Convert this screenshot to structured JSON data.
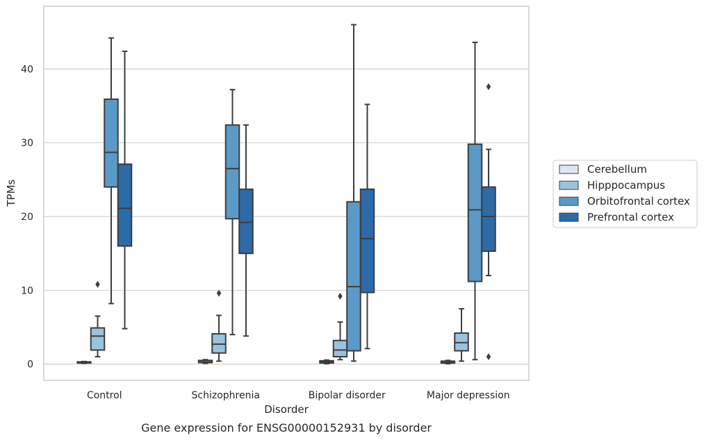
{
  "chart_data": {
    "type": "box",
    "title": "",
    "caption": "Gene expression for ENSG00000152931 by disorder",
    "xlabel": "Disorder",
    "ylabel": "TPMs",
    "ylim": [
      -2.2,
      48.5
    ],
    "yticks": [
      0,
      10,
      20,
      30,
      40
    ],
    "grid": "horizontal",
    "legend_position": "right",
    "categories": [
      "Control",
      "Schizophrenia",
      "Bipolar disorder",
      "Major depression"
    ],
    "series": [
      {
        "name": "Cerebellum",
        "color": "#dbe7f2",
        "boxes": [
          {
            "min": 0.1,
            "q1": 0.15,
            "median": 0.2,
            "q3": 0.3,
            "max": 0.35,
            "outliers": []
          },
          {
            "min": 0.1,
            "q1": 0.2,
            "median": 0.3,
            "q3": 0.5,
            "max": 0.6,
            "outliers": []
          },
          {
            "min": 0.05,
            "q1": 0.15,
            "median": 0.3,
            "q3": 0.45,
            "max": 0.55,
            "outliers": []
          },
          {
            "min": 0.05,
            "q1": 0.15,
            "median": 0.25,
            "q3": 0.4,
            "max": 0.5,
            "outliers": []
          }
        ]
      },
      {
        "name": "Hipppocampus",
        "color": "#9ac3dd",
        "boxes": [
          {
            "min": 1.0,
            "q1": 1.9,
            "median": 3.8,
            "q3": 4.9,
            "max": 6.5,
            "outliers": [
              10.8
            ]
          },
          {
            "min": 0.4,
            "q1": 1.5,
            "median": 2.7,
            "q3": 4.1,
            "max": 6.6,
            "outliers": [
              9.6
            ]
          },
          {
            "min": 0.6,
            "q1": 1.0,
            "median": 1.9,
            "q3": 3.2,
            "max": 5.7,
            "outliers": [
              9.2
            ]
          },
          {
            "min": 0.4,
            "q1": 1.8,
            "median": 2.9,
            "q3": 4.2,
            "max": 7.5,
            "outliers": []
          }
        ]
      },
      {
        "name": "Orbitofrontal cortex",
        "color": "#5b9ac8",
        "boxes": [
          {
            "min": 8.2,
            "q1": 24.0,
            "median": 28.7,
            "q3": 35.9,
            "max": 44.2,
            "outliers": []
          },
          {
            "min": 4.0,
            "q1": 19.7,
            "median": 26.5,
            "q3": 32.4,
            "max": 37.2,
            "outliers": []
          },
          {
            "min": 0.4,
            "q1": 1.8,
            "median": 10.5,
            "q3": 22.0,
            "max": 46.0,
            "outliers": []
          },
          {
            "min": 0.6,
            "q1": 11.2,
            "median": 20.9,
            "q3": 29.8,
            "max": 43.6,
            "outliers": []
          }
        ]
      },
      {
        "name": "Prefrontal cortex",
        "color": "#2d6aa8",
        "boxes": [
          {
            "min": 4.8,
            "q1": 16.0,
            "median": 21.1,
            "q3": 27.1,
            "max": 42.4,
            "outliers": []
          },
          {
            "min": 3.8,
            "q1": 15.0,
            "median": 19.2,
            "q3": 23.7,
            "max": 32.4,
            "outliers": []
          },
          {
            "min": 2.1,
            "q1": 9.7,
            "median": 17.0,
            "q3": 23.7,
            "max": 35.2,
            "outliers": []
          },
          {
            "min": 12.0,
            "q1": 15.3,
            "median": 20.0,
            "q3": 24.0,
            "max": 29.1,
            "outliers": [
              1.0,
              37.6
            ]
          }
        ]
      }
    ]
  }
}
